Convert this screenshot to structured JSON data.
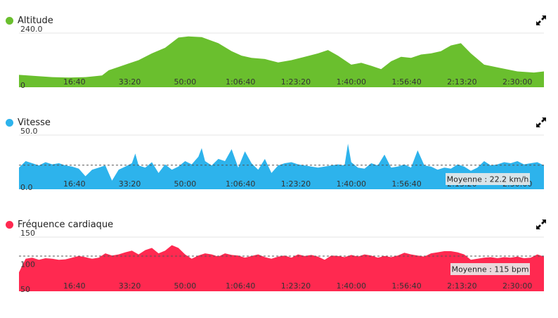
{
  "panels": [
    {
      "title": "Altitude",
      "color": "#6abf2e",
      "icon": "expand-icon"
    },
    {
      "title": "Vitesse",
      "color": "#2db3ec",
      "icon": "expand-icon"
    },
    {
      "title": "Fréquence cardiaque",
      "color": "#ff2950",
      "icon": "expand-icon"
    }
  ],
  "chart_data": [
    {
      "type": "area",
      "x_ticks": [
        "16:40",
        "33:20",
        "50:00",
        "1:06:40",
        "1:23:20",
        "1:40:00",
        "1:56:40",
        "2:13:20",
        "2:30:00"
      ],
      "y_ticks": [
        "240.0",
        "0"
      ],
      "ylim": [
        0,
        240
      ],
      "grid": true,
      "series": [
        {
          "color": "#6abf2e",
          "x_minutes": [
            0,
            5,
            10,
            15,
            20,
            25,
            27,
            30,
            33,
            36,
            40,
            44,
            48,
            51,
            55,
            60,
            64,
            67,
            70,
            74,
            78,
            82,
            86,
            90,
            93,
            96,
            100,
            103,
            106,
            109,
            112,
            115,
            118,
            121,
            124,
            127,
            130,
            133,
            136,
            140,
            145,
            150,
            155,
            158
          ],
          "y": [
            55,
            50,
            45,
            43,
            45,
            52,
            75,
            90,
            105,
            120,
            150,
            175,
            220,
            225,
            222,
            195,
            160,
            140,
            130,
            125,
            110,
            120,
            135,
            150,
            165,
            140,
            100,
            108,
            95,
            80,
            115,
            135,
            130,
            145,
            150,
            160,
            185,
            195,
            150,
            100,
            85,
            70,
            65,
            70
          ]
        }
      ]
    },
    {
      "type": "area",
      "x_ticks": [
        "16:40",
        "33:20",
        "50:00",
        "1:06:40",
        "1:23:20",
        "1:40:00",
        "1:56:40",
        "2:13:20",
        "2:30:00"
      ],
      "y_ticks": [
        "50.0",
        "0.0"
      ],
      "ylim": [
        0,
        50
      ],
      "grid": true,
      "average_label": "Moyenne : 22.2 km/h",
      "average": 22.2,
      "series": [
        {
          "color": "#2db3ec",
          "x_minutes": [
            0,
            2,
            4,
            6,
            8,
            10,
            12,
            14,
            16,
            18,
            20,
            22,
            24,
            26,
            28,
            30,
            32,
            34,
            35,
            36,
            38,
            40,
            42,
            44,
            46,
            48,
            50,
            52,
            54,
            55,
            56,
            58,
            60,
            62,
            64,
            66,
            68,
            70,
            72,
            74,
            76,
            78,
            80,
            82,
            84,
            86,
            88,
            90,
            92,
            94,
            96,
            98,
            99,
            100,
            102,
            104,
            106,
            108,
            110,
            112,
            114,
            116,
            118,
            120,
            122,
            124,
            126,
            128,
            130,
            132,
            134,
            136,
            138,
            140,
            142,
            144,
            146,
            148,
            150,
            152,
            154,
            156,
            158
          ],
          "y": [
            20,
            26,
            24,
            22,
            25,
            23,
            24,
            22,
            21,
            19,
            12,
            18,
            20,
            22,
            8,
            18,
            21,
            24,
            33,
            22,
            20,
            25,
            15,
            23,
            18,
            21,
            26,
            23,
            30,
            38,
            26,
            22,
            28,
            26,
            37,
            20,
            35,
            24,
            18,
            28,
            15,
            22,
            24,
            25,
            23,
            22,
            21,
            20,
            21,
            22,
            23,
            22,
            42,
            25,
            20,
            19,
            24,
            22,
            32,
            20,
            21,
            23,
            20,
            36,
            22,
            21,
            18,
            20,
            19,
            23,
            21,
            17,
            20,
            26,
            22,
            23,
            25,
            24,
            26,
            23,
            24,
            25,
            22
          ]
        }
      ]
    },
    {
      "type": "area",
      "x_ticks": [
        "16:40",
        "33:20",
        "50:00",
        "1:06:40",
        "1:23:20",
        "1:40:00",
        "1:56:40",
        "2:13:20",
        "2:30:00"
      ],
      "y_ticks": [
        "150",
        "100",
        "50"
      ],
      "ylim": [
        50,
        150
      ],
      "grid": true,
      "average_label": "Moyenne : 115 bpm",
      "average": 115,
      "series": [
        {
          "color": "#ff2950",
          "x_minutes": [
            0,
            2,
            4,
            6,
            8,
            10,
            12,
            14,
            16,
            18,
            20,
            22,
            24,
            26,
            28,
            30,
            32,
            34,
            36,
            38,
            40,
            42,
            44,
            46,
            48,
            50,
            52,
            54,
            56,
            58,
            60,
            62,
            64,
            66,
            68,
            70,
            72,
            74,
            76,
            78,
            80,
            82,
            84,
            86,
            88,
            90,
            92,
            94,
            96,
            98,
            100,
            102,
            104,
            106,
            108,
            110,
            112,
            114,
            116,
            118,
            120,
            122,
            124,
            126,
            128,
            130,
            132,
            134,
            136,
            138,
            140,
            142,
            144,
            146,
            148,
            150,
            152,
            154,
            156,
            158
          ],
          "y": [
            85,
            110,
            112,
            108,
            111,
            110,
            108,
            109,
            112,
            115,
            113,
            110,
            112,
            120,
            116,
            118,
            122,
            125,
            118,
            126,
            130,
            120,
            125,
            135,
            130,
            118,
            110,
            116,
            120,
            118,
            114,
            120,
            117,
            116,
            112,
            115,
            118,
            113,
            110,
            114,
            116,
            112,
            118,
            115,
            117,
            114,
            108,
            116,
            115,
            113,
            117,
            114,
            118,
            116,
            112,
            115,
            113,
            116,
            121,
            118,
            116,
            114,
            120,
            122,
            124,
            124,
            122,
            118,
            108,
            110,
            112,
            113,
            111,
            113,
            112,
            114,
            111,
            112,
            118,
            114
          ]
        }
      ]
    }
  ]
}
